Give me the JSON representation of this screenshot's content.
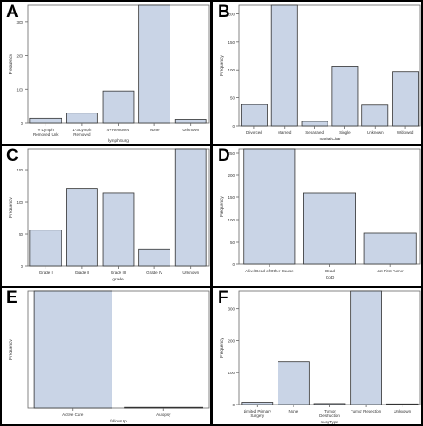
{
  "panels": [
    {
      "letter": "A",
      "chart_data": {
        "type": "bar",
        "categories": [
          [
            "# Lymph",
            "Removed Unk"
          ],
          [
            "1-3 Lymph",
            "Removed"
          ],
          [
            "4+ Removed"
          ],
          [
            "None"
          ],
          [
            "Unknown"
          ]
        ],
        "values": [
          15,
          30,
          95,
          350,
          12
        ],
        "xlabel": "lymphSurg",
        "ylabel": "Frequency",
        "ylim": [
          0,
          350
        ],
        "yticks": [
          0,
          100,
          200,
          300
        ],
        "bar_color": "#c9d4e6",
        "grid": false
      }
    },
    {
      "letter": "B",
      "chart_data": {
        "type": "bar",
        "categories": [
          [
            "Divorced"
          ],
          [
            "Married"
          ],
          [
            "Separated"
          ],
          [
            "Single"
          ],
          [
            "Unknown"
          ],
          [
            "Widowed"
          ]
        ],
        "values": [
          38,
          215,
          8,
          106,
          37,
          96
        ],
        "xlabel": "maritalChar",
        "ylabel": "Frequency",
        "ylim": [
          0,
          215
        ],
        "yticks": [
          0,
          50,
          100,
          150,
          200
        ],
        "bar_color": "#c9d4e6",
        "grid": false
      }
    },
    {
      "letter": "C",
      "chart_data": {
        "type": "bar",
        "categories": [
          [
            "Grade I"
          ],
          [
            "Grade II"
          ],
          [
            "Grade III"
          ],
          [
            "Grade IV"
          ],
          [
            "Unknown"
          ]
        ],
        "values": [
          56,
          120,
          114,
          26,
          182
        ],
        "xlabel": "grade",
        "ylabel": "Frequency",
        "ylim": [
          0,
          182
        ],
        "yticks": [
          0,
          50,
          100,
          150
        ],
        "bar_color": "#c9d4e6",
        "grid": false
      }
    },
    {
      "letter": "D",
      "chart_data": {
        "type": "bar",
        "categories": [
          [
            "Alive/Dead of Other Cause"
          ],
          [
            "Dead"
          ],
          [
            "Not First Tumor"
          ]
        ],
        "values": [
          258,
          160,
          70
        ],
        "xlabel": "CoD",
        "ylabel": "Frequency",
        "ylim": [
          0,
          258
        ],
        "yticks": [
          0,
          50,
          100,
          150,
          200,
          250
        ],
        "bar_color": "#c9d4e6",
        "grid": false
      }
    },
    {
      "letter": "E",
      "chart_data": {
        "type": "bar",
        "categories": [
          [
            "Active Care"
          ],
          [
            "Autopsy"
          ]
        ],
        "values": [
          493,
          3
        ],
        "xlabel": "followUp",
        "ylabel": "Frequency",
        "ylim": [
          0,
          493
        ],
        "yticks": [],
        "bar_color": "#c9d4e6",
        "grid": false
      }
    },
    {
      "letter": "F",
      "chart_data": {
        "type": "bar",
        "categories": [
          [
            "Limited Primary",
            "Surgery"
          ],
          [
            "None"
          ],
          [
            "Tumor",
            "Destruction"
          ],
          [
            "Tumor Resection"
          ],
          [
            "Unknown"
          ]
        ],
        "values": [
          7,
          135,
          3,
          355,
          2
        ],
        "xlabel": "surgType",
        "ylabel": "Frequency",
        "ylim": [
          0,
          355
        ],
        "yticks": [
          0,
          100,
          200,
          300
        ],
        "bar_color": "#c9d4e6",
        "grid": false
      }
    }
  ]
}
